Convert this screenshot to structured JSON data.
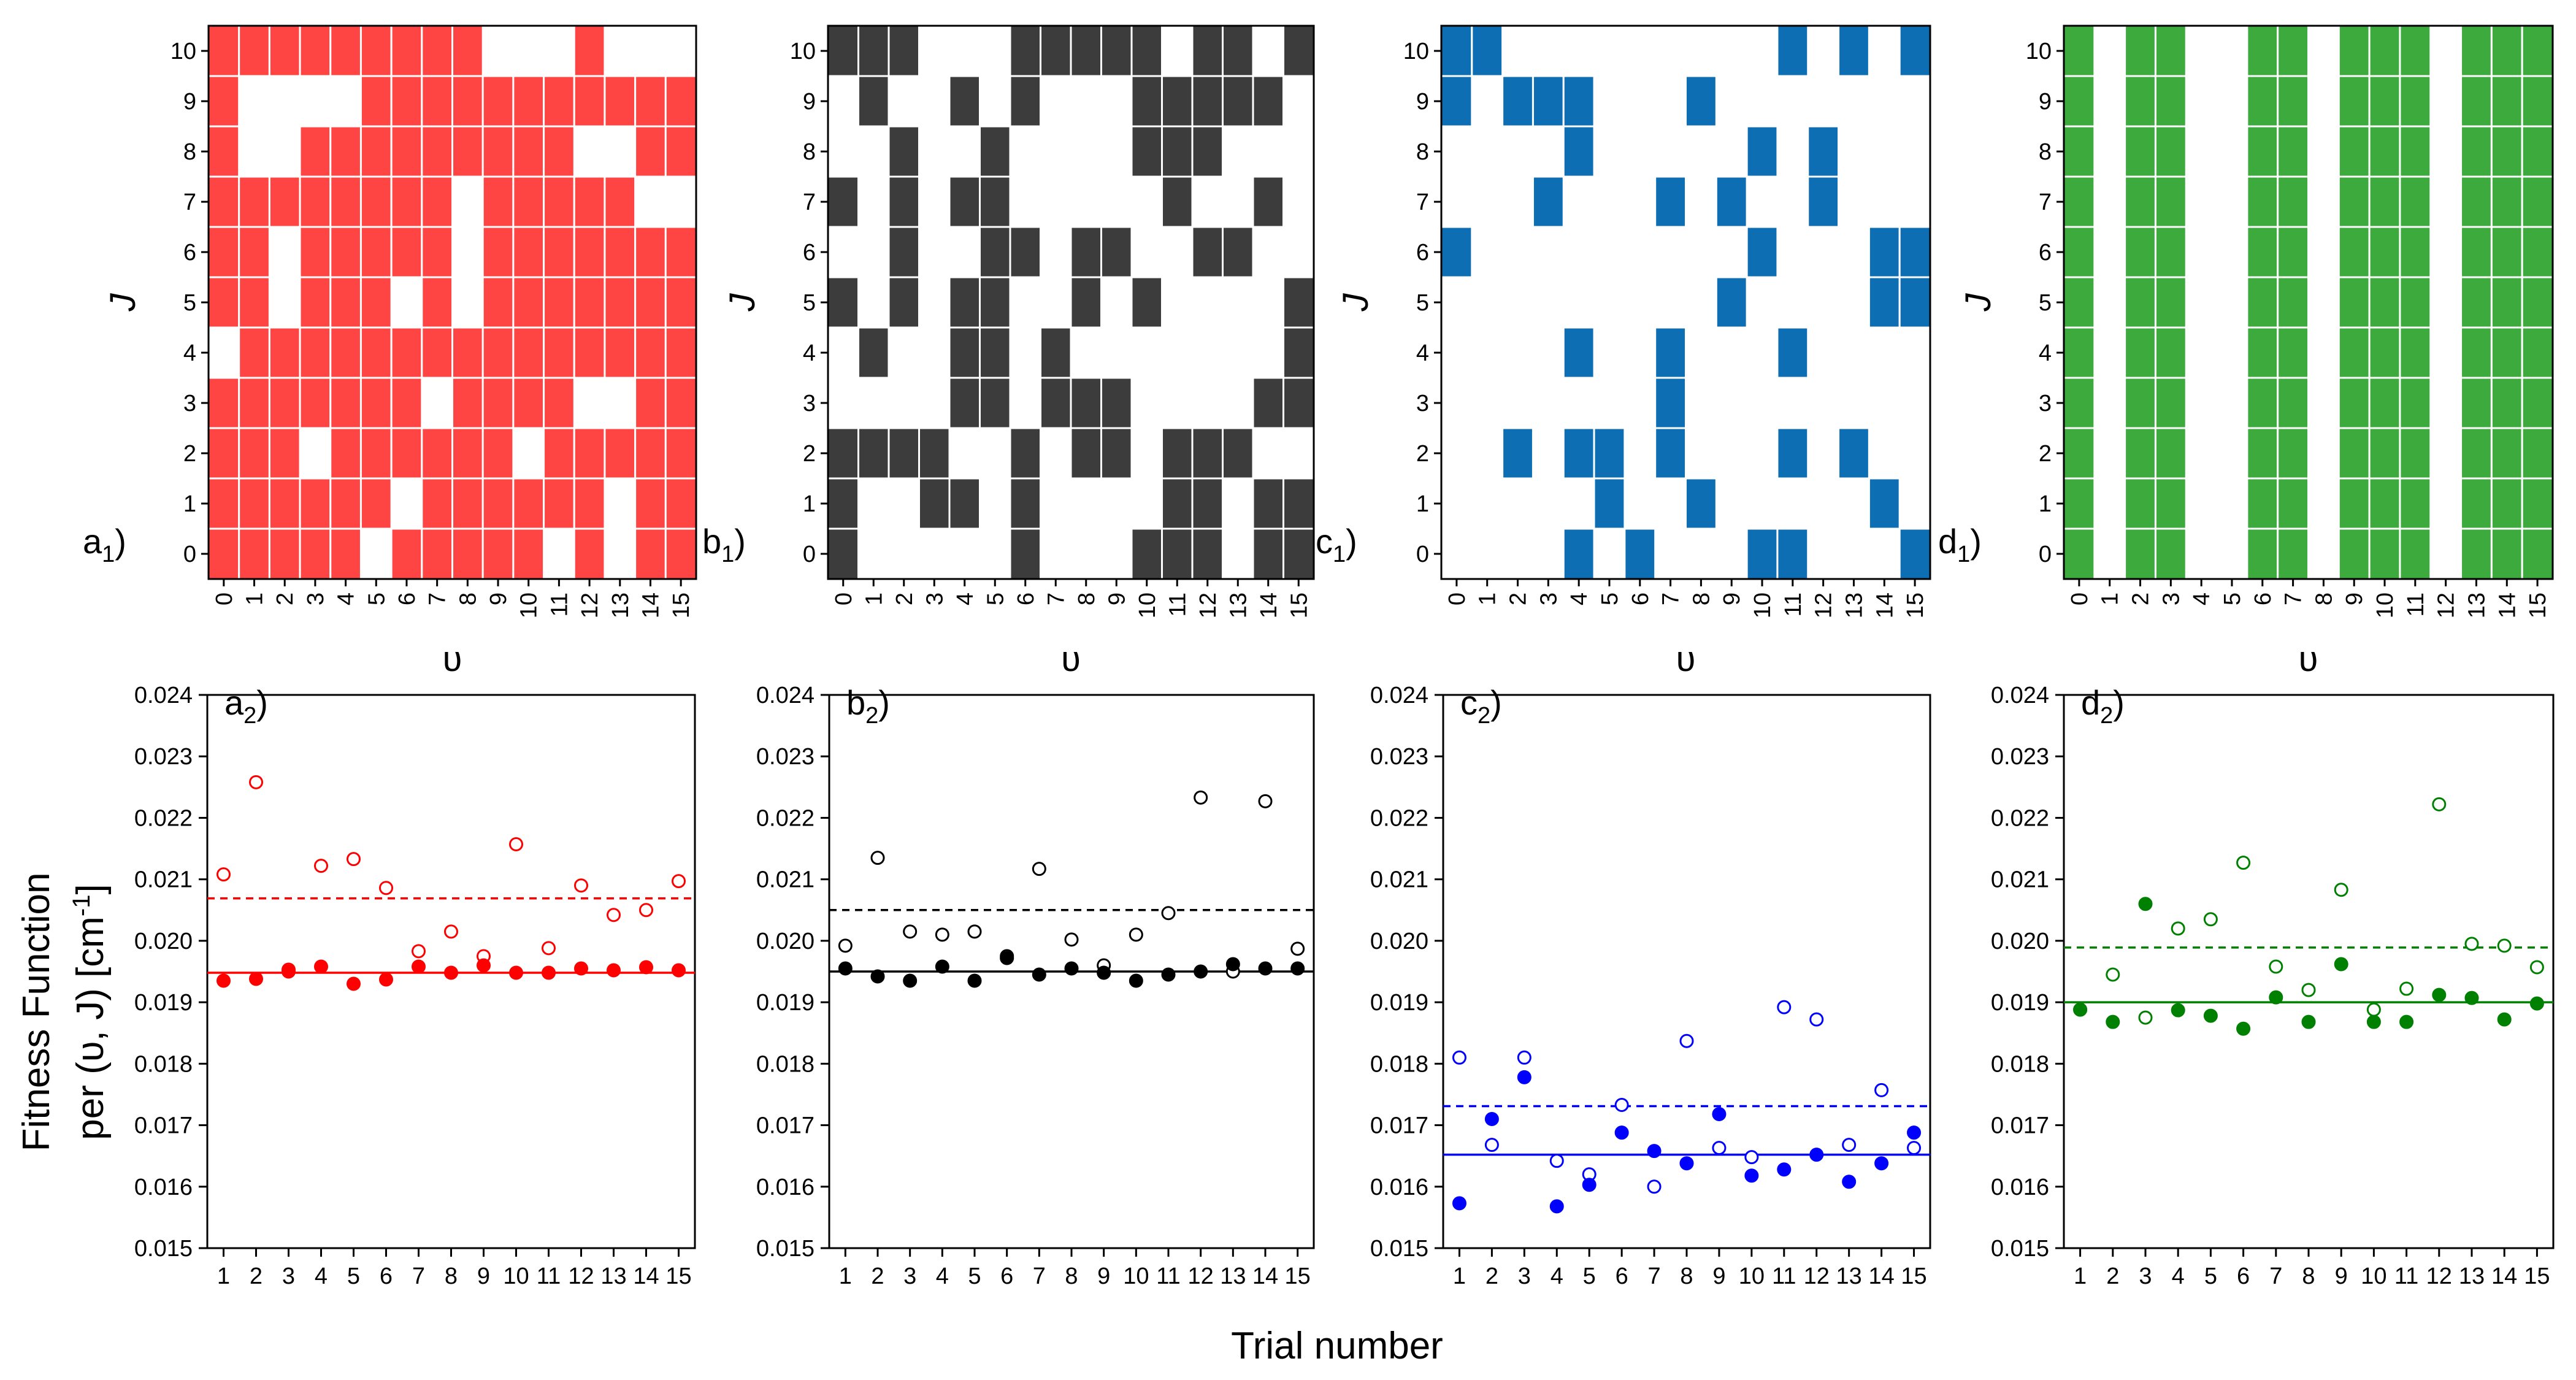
{
  "figure": {
    "common_ylabel_line1": "Fitness Function",
    "common_ylabel_line2": "per (υ, J) [cm",
    "common_ylabel_sup": "-1",
    "common_ylabel_tail": "]",
    "common_xlabel": "Trial number"
  },
  "chart_data": [
    {
      "id": "a1",
      "type": "heatmap",
      "panel_label": "a",
      "panel_sub": "1",
      "color": "#ff4444",
      "xlabel": "υ",
      "ylabel": "J",
      "x_ticks": [
        "0",
        "1",
        "2",
        "3",
        "4",
        "5",
        "6",
        "7",
        "8",
        "9",
        "10",
        "11",
        "12",
        "13",
        "14",
        "15"
      ],
      "y_ticks": [
        "0",
        "1",
        "2",
        "3",
        "4",
        "5",
        "6",
        "7",
        "8",
        "9",
        "10"
      ],
      "rows": [
        "1111101111101011",
        "1111110111111011",
        "1110111111011111",
        "1111111011110011",
        "0111111111111111",
        "1101110101111111",
        "1101111101111111",
        "1111111101111100",
        "1001111111110011",
        "1000011111111111",
        "1111111110001000"
      ]
    },
    {
      "id": "b1",
      "type": "heatmap",
      "panel_label": "b",
      "panel_sub": "1",
      "color": "#3c3c3c",
      "xlabel": "υ",
      "ylabel": "J",
      "x_ticks": [
        "0",
        "1",
        "2",
        "3",
        "4",
        "5",
        "6",
        "7",
        "8",
        "9",
        "10",
        "11",
        "12",
        "13",
        "14",
        "15"
      ],
      "y_ticks": [
        "0",
        "1",
        "2",
        "3",
        "4",
        "5",
        "6",
        "7",
        "8",
        "9",
        "10"
      ],
      "rows": [
        "1000001000111011",
        "1001101000011011",
        "1111001011011100",
        "0000110111000011",
        "0100110100000001",
        "1010110010100001",
        "0010011011001100",
        "1010110000010010",
        "0010010000111000",
        "0100101000111110",
        "1110001111101101"
      ]
    },
    {
      "id": "c1",
      "type": "heatmap",
      "panel_label": "c",
      "panel_sub": "1",
      "color": "#0e6eb4",
      "xlabel": "υ",
      "ylabel": "J",
      "x_ticks": [
        "0",
        "1",
        "2",
        "3",
        "4",
        "5",
        "6",
        "7",
        "8",
        "9",
        "10",
        "11",
        "12",
        "13",
        "14",
        "15"
      ],
      "y_ticks": [
        "0",
        "1",
        "2",
        "3",
        "4",
        "5",
        "6",
        "7",
        "8",
        "9",
        "10"
      ],
      "rows": [
        "0000101000110001",
        "0000010010000010",
        "0010110100010100",
        "0000000100000000",
        "0000100100010000",
        "0000000001000011",
        "1000000000100011",
        "0001000101001000",
        "0000100000101000",
        "1011100010000000",
        "1100000000010101"
      ]
    },
    {
      "id": "d1",
      "type": "heatmap",
      "panel_label": "d",
      "panel_sub": "1",
      "color": "#3daa3d",
      "xlabel": "υ",
      "ylabel": "J",
      "x_ticks": [
        "0",
        "1",
        "2",
        "3",
        "4",
        "5",
        "6",
        "7",
        "8",
        "9",
        "10",
        "11",
        "12",
        "13",
        "14",
        "15"
      ],
      "y_ticks": [
        "0",
        "1",
        "2",
        "3",
        "4",
        "5",
        "6",
        "7",
        "8",
        "9",
        "10"
      ],
      "rows": [
        "1011001101110111",
        "1011001101110111",
        "1011001101110111",
        "1011001101110111",
        "1011001101110111",
        "1011001101110111",
        "1011001101110111",
        "1011001101110111",
        "1011001101110111",
        "1011001101110111",
        "1011001101110111"
      ]
    },
    {
      "id": "a2",
      "type": "scatter",
      "panel_label": "a",
      "panel_sub": "2",
      "color": "#ff0000",
      "x": [
        1,
        2,
        3,
        4,
        5,
        6,
        7,
        8,
        9,
        10,
        11,
        12,
        13,
        14,
        15
      ],
      "x_ticks": [
        "1",
        "2",
        "3",
        "4",
        "5",
        "6",
        "7",
        "8",
        "9",
        "10",
        "11",
        "12",
        "13",
        "14",
        "15"
      ],
      "y_ticks": [
        "0.015",
        "0.016",
        "0.017",
        "0.018",
        "0.019",
        "0.020",
        "0.021",
        "0.022",
        "0.023",
        "0.024"
      ],
      "ylim": [
        0.015,
        0.024
      ],
      "series": [
        {
          "name": "open",
          "marker": "open",
          "values": [
            0.02108,
            0.02258,
            0.01953,
            0.02122,
            0.02133,
            0.02086,
            0.01983,
            0.02015,
            0.01975,
            0.02157,
            0.01988,
            0.0209,
            0.02042,
            0.0205,
            0.02097
          ]
        },
        {
          "name": "filled",
          "marker": "filled",
          "values": [
            0.01935,
            0.01938,
            0.0195,
            0.01958,
            0.0193,
            0.01937,
            0.01958,
            0.01948,
            0.0196,
            0.01948,
            0.01948,
            0.01955,
            0.01952,
            0.01957,
            0.01952
          ]
        }
      ],
      "hlines": [
        {
          "name": "mean-open",
          "style": "dashed",
          "value": 0.02069
        },
        {
          "name": "mean-filled",
          "style": "solid",
          "value": 0.01948
        }
      ]
    },
    {
      "id": "b2",
      "type": "scatter",
      "panel_label": "b",
      "panel_sub": "2",
      "color": "#000000",
      "x": [
        1,
        2,
        3,
        4,
        5,
        6,
        7,
        8,
        9,
        10,
        11,
        12,
        13,
        14,
        15
      ],
      "x_ticks": [
        "1",
        "2",
        "3",
        "4",
        "5",
        "6",
        "7",
        "8",
        "9",
        "10",
        "11",
        "12",
        "13",
        "14",
        "15"
      ],
      "y_ticks": [
        "0.015",
        "0.016",
        "0.017",
        "0.018",
        "0.019",
        "0.020",
        "0.021",
        "0.022",
        "0.023",
        "0.024"
      ],
      "ylim": [
        0.015,
        0.024
      ],
      "series": [
        {
          "name": "open",
          "marker": "open",
          "values": [
            0.01992,
            0.02135,
            0.02015,
            0.0201,
            0.02015,
            0.01975,
            0.02117,
            0.02002,
            0.0196,
            0.0201,
            0.02045,
            0.02233,
            0.0195,
            0.02227,
            0.01987
          ]
        },
        {
          "name": "filled",
          "marker": "filled",
          "values": [
            0.01955,
            0.01942,
            0.01935,
            0.01958,
            0.01935,
            0.01972,
            0.01945,
            0.01955,
            0.01948,
            0.01935,
            0.01945,
            0.0195,
            0.01962,
            0.01955,
            0.01955
          ]
        }
      ],
      "hlines": [
        {
          "name": "mean-open",
          "style": "dashed",
          "value": 0.0205
        },
        {
          "name": "mean-filled",
          "style": "solid",
          "value": 0.0195
        }
      ]
    },
    {
      "id": "c2",
      "type": "scatter",
      "panel_label": "c",
      "panel_sub": "2",
      "color": "#0000ff",
      "x": [
        1,
        2,
        3,
        4,
        5,
        6,
        7,
        8,
        9,
        10,
        11,
        12,
        13,
        14,
        15
      ],
      "x_ticks": [
        "1",
        "2",
        "3",
        "4",
        "5",
        "6",
        "7",
        "8",
        "9",
        "10",
        "11",
        "12",
        "13",
        "14",
        "15"
      ],
      "y_ticks": [
        "0.015",
        "0.016",
        "0.017",
        "0.018",
        "0.019",
        "0.020",
        "0.021",
        "0.022",
        "0.023",
        "0.024"
      ],
      "ylim": [
        0.015,
        0.024
      ],
      "series": [
        {
          "name": "open",
          "marker": "open",
          "values": [
            0.0181,
            0.01668,
            0.0181,
            0.01642,
            0.0162,
            0.01733,
            0.016,
            0.01837,
            0.01663,
            0.01648,
            0.01892,
            0.01872,
            0.01668,
            0.01757,
            0.01663
          ]
        },
        {
          "name": "filled",
          "marker": "filled",
          "values": [
            0.01573,
            0.0171,
            0.01778,
            0.01568,
            0.01603,
            0.01688,
            0.01658,
            0.01638,
            0.01718,
            0.01618,
            0.01628,
            0.01652,
            0.01608,
            0.01638,
            0.01688
          ]
        }
      ],
      "hlines": [
        {
          "name": "mean-open",
          "style": "dashed",
          "value": 0.01731
        },
        {
          "name": "mean-filled",
          "style": "solid",
          "value": 0.01652
        }
      ]
    },
    {
      "id": "d2",
      "type": "scatter",
      "panel_label": "d",
      "panel_sub": "2",
      "color": "#008000",
      "x": [
        1,
        2,
        3,
        4,
        5,
        6,
        7,
        8,
        9,
        10,
        11,
        12,
        13,
        14,
        15
      ],
      "x_ticks": [
        "1",
        "2",
        "3",
        "4",
        "5",
        "6",
        "7",
        "8",
        "9",
        "10",
        "11",
        "12",
        "13",
        "14",
        "15"
      ],
      "y_ticks": [
        "0.015",
        "0.016",
        "0.017",
        "0.018",
        "0.019",
        "0.020",
        "0.021",
        "0.022",
        "0.023",
        "0.024"
      ],
      "ylim": [
        0.015,
        0.024
      ],
      "series": [
        {
          "name": "open",
          "marker": "open",
          "values": [
            0.01888,
            0.01945,
            0.01875,
            0.0202,
            0.02035,
            0.02127,
            0.01958,
            0.0192,
            0.02083,
            0.01888,
            0.01922,
            0.02222,
            0.01995,
            0.01992,
            0.01957
          ]
        },
        {
          "name": "filled",
          "marker": "filled",
          "values": [
            0.01888,
            0.01868,
            0.0206,
            0.01887,
            0.01878,
            0.01857,
            0.01908,
            0.01868,
            0.01962,
            0.01868,
            0.01868,
            0.01912,
            0.01907,
            0.01872,
            0.01898
          ]
        }
      ],
      "hlines": [
        {
          "name": "mean-open",
          "style": "dashed",
          "value": 0.01989
        },
        {
          "name": "mean-filled",
          "style": "solid",
          "value": 0.019
        }
      ]
    }
  ]
}
